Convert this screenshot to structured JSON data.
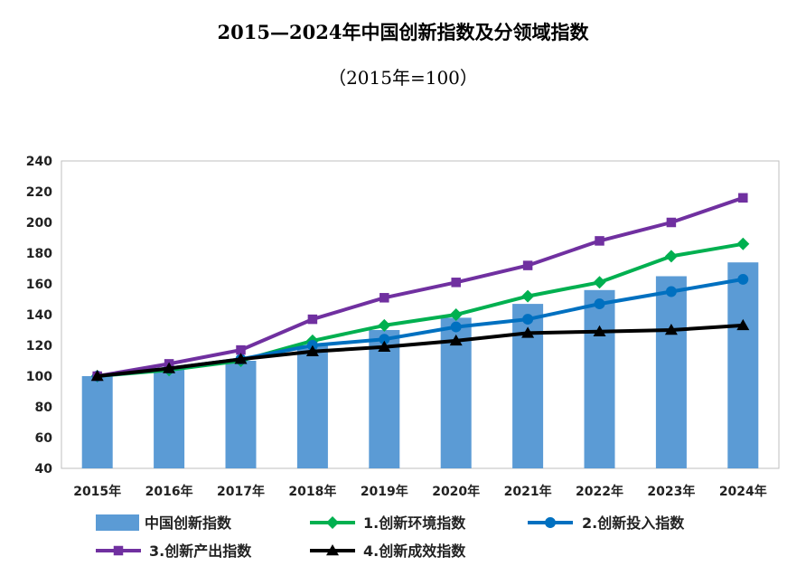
{
  "title": "2015—2024年中国创新指数及分领域指数",
  "subtitle": "（2015年=100）",
  "chart_data": {
    "type": "bar+line",
    "categories": [
      "2015年",
      "2016年",
      "2017年",
      "2018年",
      "2019年",
      "2020年",
      "2021年",
      "2022年",
      "2023年",
      "2024年"
    ],
    "ylim": [
      40,
      240
    ],
    "yticks": [
      "40",
      "60",
      "80",
      "100",
      "120",
      "140",
      "160",
      "180",
      "200",
      "220",
      "240"
    ],
    "grid": false,
    "legend_position": "bottom",
    "bar_series": {
      "name": "中国创新指数",
      "color": "#5B9BD5",
      "values": [
        100,
        105,
        110,
        120,
        130,
        138,
        147,
        156,
        165,
        174
      ]
    },
    "line_series": [
      {
        "name": "1.创新环境指数",
        "color": "#00B050",
        "marker": "diamond",
        "values": [
          100,
          104,
          110,
          123,
          133,
          140,
          152,
          161,
          178,
          186
        ]
      },
      {
        "name": "2.创新投入指数",
        "color": "#0070C0",
        "marker": "circle",
        "values": [
          100,
          105,
          111,
          120,
          124,
          132,
          137,
          147,
          155,
          163
        ]
      },
      {
        "name": "3.创新产出指数",
        "color": "#7030A0",
        "marker": "square",
        "values": [
          100,
          108,
          117,
          137,
          151,
          161,
          172,
          188,
          200,
          216
        ]
      },
      {
        "name": "4.创新成效指数",
        "color": "#000000",
        "marker": "triangle",
        "values": [
          100,
          105,
          111,
          116,
          119,
          123,
          128,
          129,
          130,
          133
        ]
      }
    ]
  }
}
